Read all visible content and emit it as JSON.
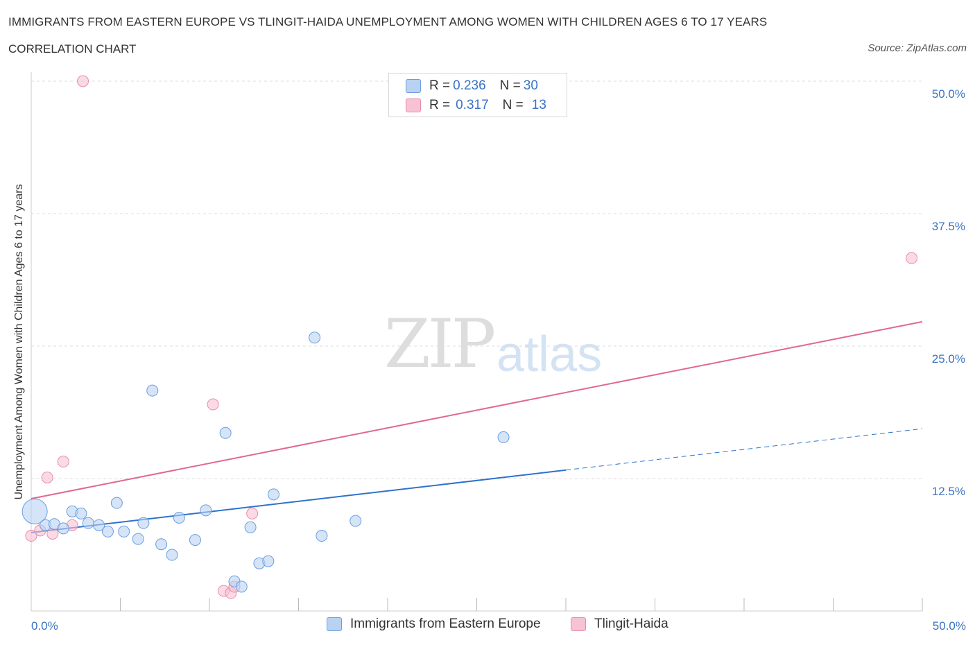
{
  "title": "IMMIGRANTS FROM EASTERN EUROPE VS TLINGIT-HAIDA UNEMPLOYMENT AMONG WOMEN WITH CHILDREN AGES 6 TO 17 YEARS",
  "subtitle": "CORRELATION CHART",
  "source": "Source: ZipAtlas.com",
  "watermark": {
    "zip": "ZIP",
    "atlas": "atlas"
  },
  "legend_top": [
    {
      "r_label": "R = ",
      "r_value": "0.236",
      "n_label": "N = ",
      "n_value": "30"
    },
    {
      "r_label": "R = ",
      "r_value": "0.317",
      "n_label": "N = ",
      "n_value": "13"
    }
  ],
  "colors": {
    "blue_fill": "#b9d2f2",
    "blue_stroke": "#6a9de0",
    "blue_line": "#2e72cc",
    "pink_fill": "#f7c2d3",
    "pink_stroke": "#e88ca9",
    "pink_line": "#e06892",
    "axis_label": "#3a72c4",
    "grid": "#dddddd"
  },
  "chart_data": {
    "type": "scatter",
    "title": "IMMIGRANTS FROM EASTERN EUROPE VS TLINGIT-HAIDA UNEMPLOYMENT AMONG WOMEN WITH CHILDREN AGES 6 TO 17 YEARS",
    "xlabel": "",
    "ylabel": "Unemployment Among Women with Children Ages 6 to 17 years",
    "xlim": [
      0,
      50
    ],
    "ylim": [
      0,
      50
    ],
    "x_tick_labels": [
      {
        "value": 0,
        "label": "0.0%"
      },
      {
        "value": 50,
        "label": "50.0%"
      }
    ],
    "y_tick_labels": [
      {
        "value": 12.5,
        "label": "12.5%"
      },
      {
        "value": 25,
        "label": "25.0%"
      },
      {
        "value": 37.5,
        "label": "37.5%"
      },
      {
        "value": 50,
        "label": "50.0%"
      }
    ],
    "grid": true,
    "series": [
      {
        "name": "Immigrants from Eastern Europe",
        "color": "blue",
        "R": 0.236,
        "N": 30,
        "points": [
          {
            "x": 0.2,
            "y": 9.4,
            "size": "large"
          },
          {
            "x": 0.8,
            "y": 8.1
          },
          {
            "x": 1.3,
            "y": 8.2
          },
          {
            "x": 1.8,
            "y": 7.8
          },
          {
            "x": 2.3,
            "y": 9.4
          },
          {
            "x": 2.8,
            "y": 9.2
          },
          {
            "x": 3.2,
            "y": 8.3
          },
          {
            "x": 3.8,
            "y": 8.1
          },
          {
            "x": 4.3,
            "y": 7.5
          },
          {
            "x": 4.8,
            "y": 10.2
          },
          {
            "x": 5.2,
            "y": 7.5
          },
          {
            "x": 6.0,
            "y": 6.8
          },
          {
            "x": 6.3,
            "y": 8.3
          },
          {
            "x": 6.8,
            "y": 20.8
          },
          {
            "x": 7.3,
            "y": 6.3
          },
          {
            "x": 7.9,
            "y": 5.3
          },
          {
            "x": 8.3,
            "y": 8.8
          },
          {
            "x": 9.2,
            "y": 6.7
          },
          {
            "x": 9.8,
            "y": 9.5
          },
          {
            "x": 10.9,
            "y": 16.8
          },
          {
            "x": 11.4,
            "y": 2.8
          },
          {
            "x": 11.8,
            "y": 2.3
          },
          {
            "x": 12.3,
            "y": 7.9
          },
          {
            "x": 12.8,
            "y": 4.5
          },
          {
            "x": 13.3,
            "y": 4.7
          },
          {
            "x": 13.6,
            "y": 11.0
          },
          {
            "x": 15.9,
            "y": 25.8
          },
          {
            "x": 16.3,
            "y": 7.1
          },
          {
            "x": 18.2,
            "y": 8.5
          },
          {
            "x": 26.5,
            "y": 16.4
          }
        ],
        "trend": {
          "x0": 0,
          "y0": 7.4,
          "x1": 30,
          "y1": 13.3,
          "dashed_to_x": 50,
          "dashed_to_y": 17.2
        }
      },
      {
        "name": "Tlingit-Haida",
        "color": "pink",
        "R": 0.317,
        "N": 13,
        "points": [
          {
            "x": 0.0,
            "y": 7.1
          },
          {
            "x": 0.5,
            "y": 7.6
          },
          {
            "x": 0.9,
            "y": 12.6
          },
          {
            "x": 1.2,
            "y": 7.3
          },
          {
            "x": 1.8,
            "y": 14.1
          },
          {
            "x": 2.3,
            "y": 8.1
          },
          {
            "x": 2.9,
            "y": 50.0
          },
          {
            "x": 10.2,
            "y": 19.5
          },
          {
            "x": 10.8,
            "y": 1.9
          },
          {
            "x": 11.2,
            "y": 1.7
          },
          {
            "x": 11.4,
            "y": 2.3
          },
          {
            "x": 12.4,
            "y": 9.2
          },
          {
            "x": 49.4,
            "y": 33.3
          }
        ],
        "trend": {
          "x0": 0,
          "y0": 10.6,
          "x1": 50,
          "y1": 27.3
        }
      }
    ],
    "legend": [
      {
        "label": "Immigrants from Eastern Europe",
        "color": "blue"
      },
      {
        "label": "Tlingit-Haida",
        "color": "pink"
      }
    ]
  }
}
